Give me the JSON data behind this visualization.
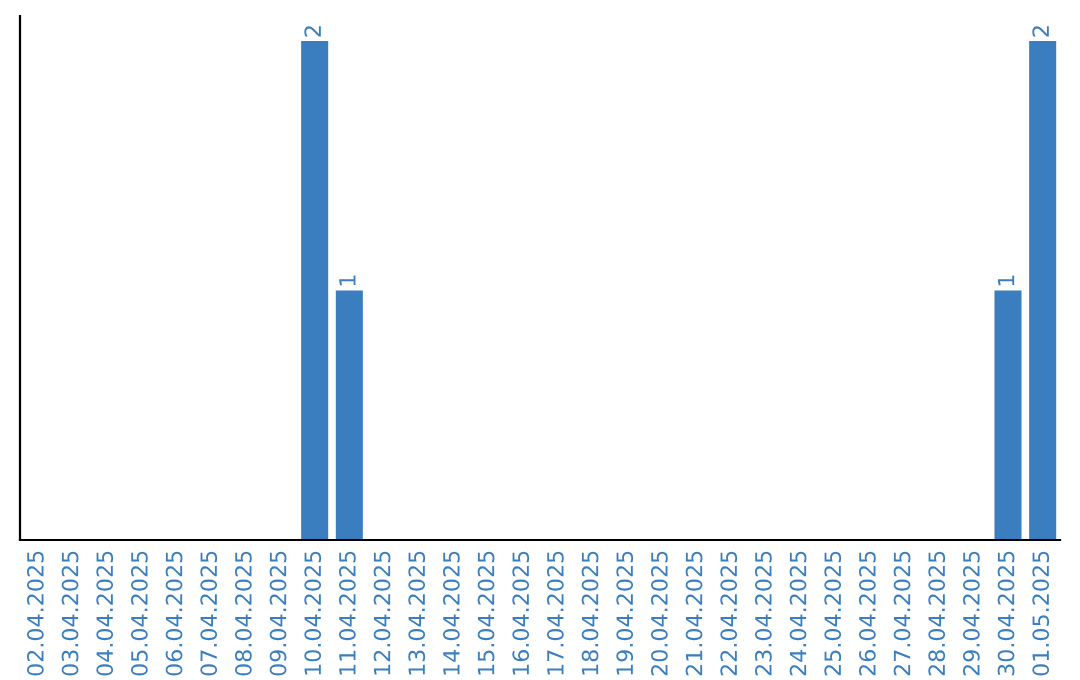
{
  "chart_data": {
    "type": "bar",
    "categories": [
      "02.04.2025",
      "03.04.2025",
      "04.04.2025",
      "05.04.2025",
      "06.04.2025",
      "07.04.2025",
      "08.04.2025",
      "09.04.2025",
      "10.04.2025",
      "11.04.2025",
      "12.04.2025",
      "13.04.2025",
      "14.04.2025",
      "15.04.2025",
      "16.04.2025",
      "17.04.2025",
      "18.04.2025",
      "19.04.2025",
      "20.04.2025",
      "21.04.2025",
      "22.04.2025",
      "23.04.2025",
      "24.04.2025",
      "25.04.2025",
      "26.04.2025",
      "27.04.2025",
      "28.04.2025",
      "29.04.2025",
      "30.04.2025",
      "01.05.2025"
    ],
    "values": [
      0,
      0,
      0,
      0,
      0,
      0,
      0,
      0,
      2,
      1,
      0,
      0,
      0,
      0,
      0,
      0,
      0,
      0,
      0,
      0,
      0,
      0,
      0,
      0,
      0,
      0,
      0,
      0,
      1,
      2
    ],
    "value_labels": [
      null,
      null,
      null,
      null,
      null,
      null,
      null,
      null,
      "2",
      "1",
      null,
      null,
      null,
      null,
      null,
      null,
      null,
      null,
      null,
      null,
      null,
      null,
      null,
      null,
      null,
      null,
      null,
      null,
      "1",
      "2"
    ],
    "color": "#3a7ebf",
    "tick_labels": "x",
    "grid": false
  }
}
